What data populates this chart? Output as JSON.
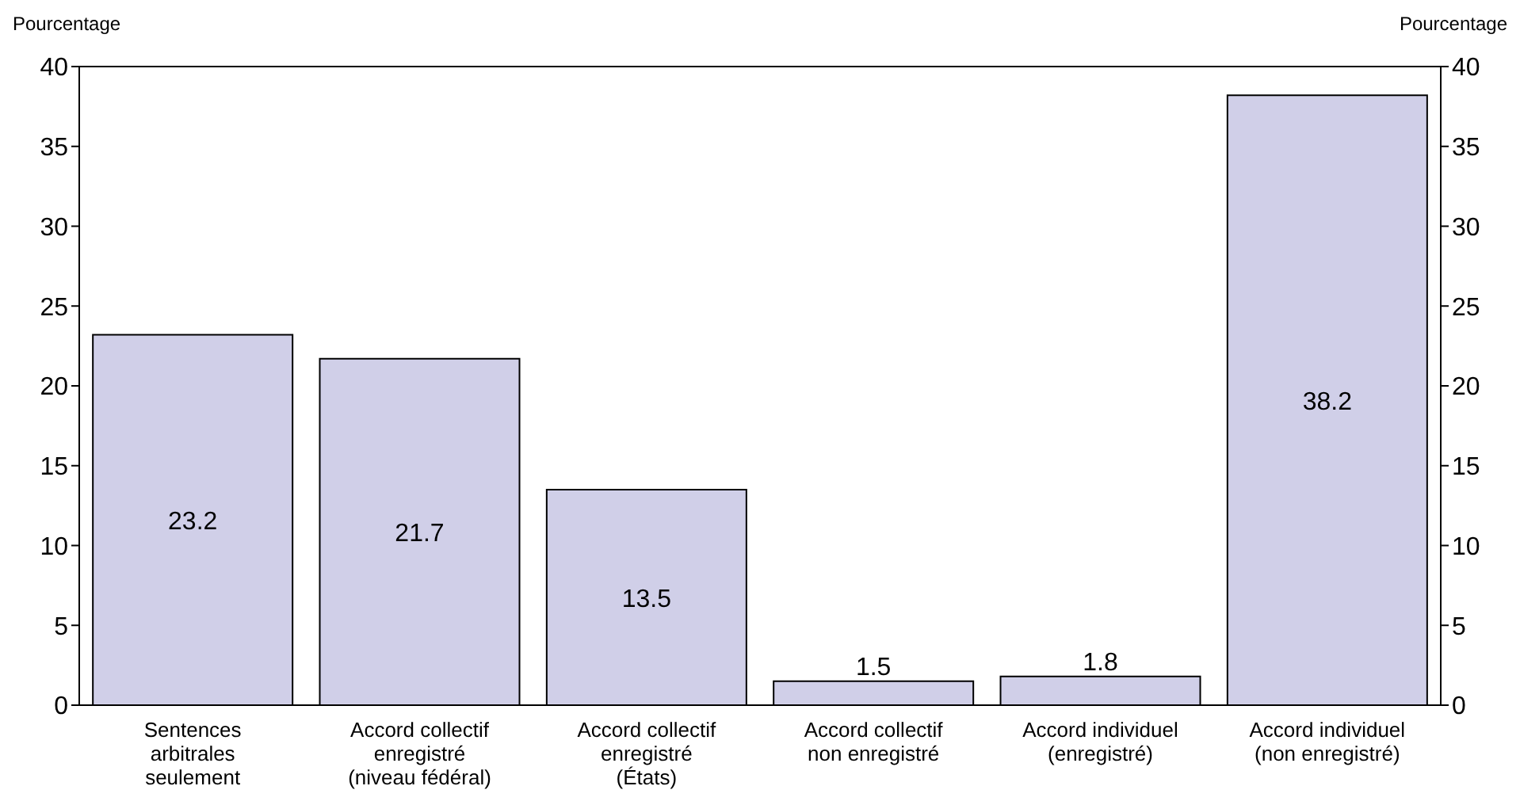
{
  "chart_data": {
    "type": "bar",
    "ylabel": "Pourcentage",
    "y2label": "Pourcentage",
    "categories": [
      "Sentences arbitrales seulement",
      "Accord collectif enregistré (niveau fédéral)",
      "Accord collectif enregistré (États)",
      "Accord collectif non enregistré",
      "Accord individuel (enregistré)",
      "Accord individuel (non enregistré)"
    ],
    "values": [
      23.2,
      21.7,
      13.5,
      1.5,
      1.8,
      38.2
    ],
    "color": "#d0cfe8",
    "ylim": [
      0,
      40
    ],
    "yticks": [
      0,
      5,
      10,
      15,
      20,
      25,
      30,
      35,
      40
    ],
    "y2lim": [
      0,
      40
    ],
    "y2ticks": [
      0,
      5,
      10,
      15,
      20,
      25,
      30,
      35,
      40
    ],
    "data_labels": true
  }
}
